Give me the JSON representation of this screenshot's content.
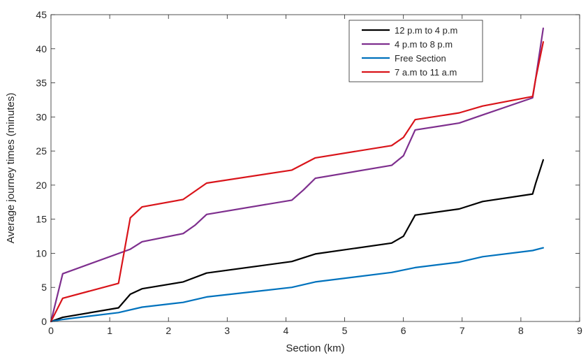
{
  "chart_data": {
    "type": "line",
    "xlabel": "Section (km)",
    "ylabel": "Average journey times (minutes)",
    "xlim": [
      0,
      9
    ],
    "ylim": [
      0,
      45
    ],
    "x_ticks": [
      "0",
      "1",
      "2",
      "3",
      "4",
      "5",
      "6",
      "7",
      "8",
      "9"
    ],
    "y_ticks": [
      "0",
      "5",
      "10",
      "15",
      "20",
      "25",
      "30",
      "35",
      "40",
      "45"
    ],
    "grid": false,
    "legend_position": "top-right",
    "series": [
      {
        "name": "12 p.m to 4 p.m",
        "color": "#000000",
        "x": [
          0,
          0.2,
          1.15,
          1.35,
          1.55,
          2.25,
          2.65,
          4.1,
          4.5,
          5.8,
          6.0,
          6.2,
          6.95,
          7.35,
          8.2,
          8.25,
          8.38
        ],
        "y": [
          0,
          0.6,
          2.0,
          4.0,
          4.8,
          5.8,
          7.1,
          8.8,
          9.9,
          11.5,
          12.5,
          15.6,
          16.5,
          17.6,
          18.7,
          20.2,
          23.7
        ]
      },
      {
        "name": "4 p.m to 8 p.m",
        "color": "#7E2F8E",
        "x": [
          0,
          0.2,
          1.35,
          1.55,
          2.25,
          2.45,
          2.65,
          4.1,
          4.3,
          4.5,
          5.8,
          6.0,
          6.2,
          6.95,
          7.35,
          8.2,
          8.25,
          8.38
        ],
        "y": [
          0,
          7.0,
          10.6,
          11.7,
          12.9,
          14.1,
          15.7,
          17.8,
          19.3,
          21.0,
          22.9,
          24.3,
          28.1,
          29.1,
          30.3,
          32.8,
          35.5,
          43.0
        ]
      },
      {
        "name": "Free Section",
        "color": "#0072BD",
        "x": [
          0,
          0.2,
          1.15,
          1.55,
          2.25,
          2.65,
          4.1,
          4.5,
          5.8,
          6.2,
          6.95,
          7.35,
          8.2,
          8.38
        ],
        "y": [
          0,
          0.3,
          1.3,
          2.1,
          2.8,
          3.6,
          5.0,
          5.8,
          7.2,
          7.9,
          8.7,
          9.5,
          10.4,
          10.8
        ]
      },
      {
        "name": "7 a.m to 11 a.m",
        "color": "#D9141A",
        "x": [
          0,
          0.2,
          1.15,
          1.35,
          1.55,
          2.25,
          2.65,
          4.1,
          4.5,
          5.8,
          6.0,
          6.2,
          6.95,
          7.35,
          8.2,
          8.25,
          8.38
        ],
        "y": [
          0,
          3.4,
          5.6,
          15.2,
          16.8,
          17.9,
          20.3,
          22.2,
          24.0,
          25.8,
          27.0,
          29.6,
          30.6,
          31.6,
          33.0,
          35.5,
          41.0
        ]
      }
    ]
  }
}
